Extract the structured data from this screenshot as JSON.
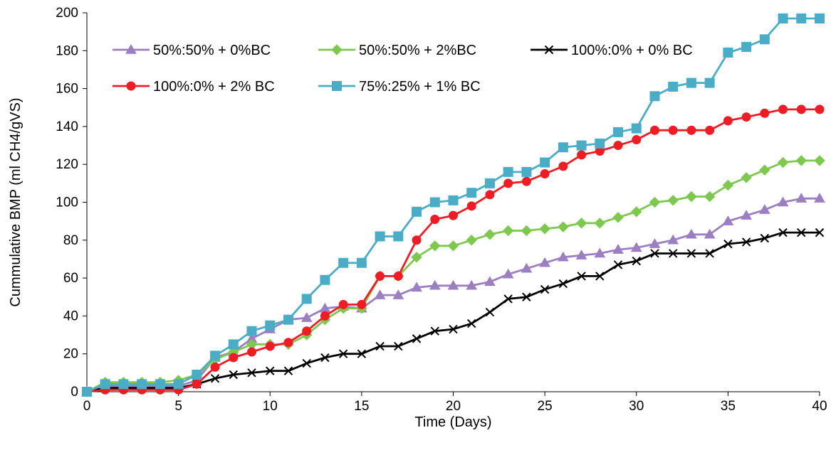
{
  "chart_data": {
    "type": "line",
    "xlabel": "Time (Days)",
    "ylabel": "Cummulative  BMP (ml CH4/gVS)",
    "xlim": [
      0,
      40
    ],
    "ylim": [
      0,
      200
    ],
    "xticks": [
      0,
      5,
      10,
      15,
      20,
      25,
      30,
      35,
      40
    ],
    "yticks": [
      0,
      20,
      40,
      60,
      80,
      100,
      120,
      140,
      160,
      180,
      200
    ],
    "grid": false,
    "legend_position": "top-left, inside plot",
    "x": [
      0,
      1,
      2,
      3,
      4,
      5,
      6,
      7,
      8,
      9,
      10,
      11,
      12,
      13,
      14,
      15,
      16,
      17,
      18,
      19,
      20,
      21,
      22,
      23,
      24,
      25,
      26,
      27,
      28,
      29,
      30,
      31,
      32,
      33,
      34,
      35,
      36,
      37,
      38,
      39,
      40
    ],
    "series": [
      {
        "name": "50%:50% + 0%BC",
        "color": "#9b7fc0",
        "marker": "triangle",
        "values": [
          0,
          3,
          3,
          3,
          3,
          3,
          6,
          18,
          21,
          28,
          33,
          38,
          39,
          44,
          45,
          44,
          51,
          51,
          55,
          56,
          56,
          56,
          58,
          62,
          65,
          68,
          71,
          72,
          73,
          75,
          76,
          78,
          80,
          83,
          83,
          90,
          93,
          96,
          100,
          102,
          102
        ]
      },
      {
        "name": "50%:50% + 2%BC",
        "color": "#7ec850",
        "marker": "diamond",
        "values": [
          0,
          5,
          5,
          5,
          5,
          6,
          9,
          17,
          21,
          25,
          25,
          25,
          30,
          38,
          44,
          44,
          61,
          61,
          71,
          77,
          77,
          80,
          83,
          85,
          85,
          86,
          87,
          89,
          89,
          92,
          95,
          100,
          101,
          103,
          103,
          109,
          113,
          117,
          121,
          122,
          122
        ]
      },
      {
        "name": "100%:0% + 0% BC",
        "color": "#000000",
        "marker": "x",
        "values": [
          0,
          2,
          2,
          2,
          2,
          2,
          4,
          7,
          9,
          10,
          11,
          11,
          15,
          18,
          20,
          20,
          24,
          24,
          28,
          32,
          33,
          36,
          42,
          49,
          50,
          54,
          57,
          61,
          61,
          67,
          69,
          73,
          73,
          73,
          73,
          78,
          79,
          81,
          84,
          84,
          84
        ]
      },
      {
        "name": "100%:0% + 2% BC",
        "color": "#ee1c24",
        "marker": "circle",
        "values": [
          0,
          1,
          1,
          1,
          1,
          1,
          4,
          13,
          18,
          21,
          24,
          26,
          32,
          40,
          46,
          46,
          61,
          61,
          80,
          91,
          93,
          98,
          104,
          110,
          111,
          115,
          119,
          125,
          127,
          130,
          133,
          138,
          138,
          138,
          138,
          143,
          145,
          147,
          149,
          149,
          149
        ]
      },
      {
        "name": "75%:25% + 1% BC",
        "color": "#4bacc6",
        "marker": "square",
        "values": [
          0,
          4,
          4,
          4,
          4,
          4,
          9,
          19,
          25,
          32,
          35,
          38,
          49,
          59,
          68,
          68,
          82,
          82,
          95,
          100,
          101,
          105,
          110,
          116,
          116,
          121,
          129,
          130,
          131,
          137,
          139,
          156,
          161,
          163,
          163,
          179,
          182,
          186,
          197,
          197,
          197
        ]
      }
    ]
  }
}
